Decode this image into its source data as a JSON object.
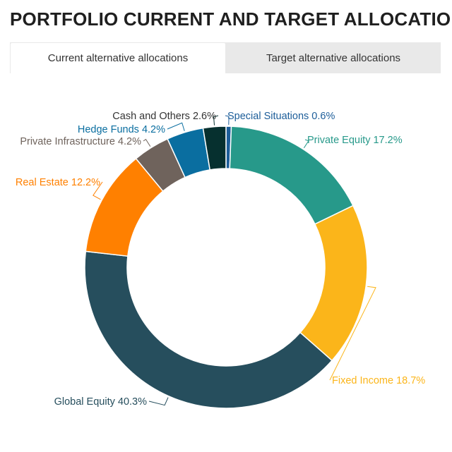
{
  "title": "PORTFOLIO CURRENT AND TARGET ALLOCATION",
  "tabs": [
    {
      "label": "Current alternative allocations",
      "active": true
    },
    {
      "label": "Target alternative allocations",
      "active": false
    }
  ],
  "chart_data": {
    "type": "pie",
    "donut": true,
    "categories": [
      "Special Situations",
      "Private Equity",
      "Fixed Income",
      "Global Equity",
      "Real Estate",
      "Private Infrastructure",
      "Hedge Funds",
      "Cash and Others"
    ],
    "values": [
      0.6,
      17.2,
      18.7,
      40.3,
      12.2,
      4.2,
      4.2,
      2.6
    ],
    "labels": [
      "Special Situations 0.6%",
      "Private Equity 17.2%",
      "Fixed Income 18.7%",
      "Global Equity 40.3%",
      "Real Estate 12.2%",
      "Private Infrastructure 4.2%",
      "Hedge Funds 4.2%",
      "Cash and Others 2.6%"
    ],
    "colors": [
      "#1c5d99",
      "#27998a",
      "#fbb51a",
      "#264e5d",
      "#ff8000",
      "#6f635c",
      "#0a6ea0",
      "#06302f"
    ],
    "label_colors": [
      "#1c5d99",
      "#27998a",
      "#fbb51a",
      "#264e5d",
      "#ff8000",
      "#6f635c",
      "#0a6ea0",
      "#333333"
    ]
  }
}
